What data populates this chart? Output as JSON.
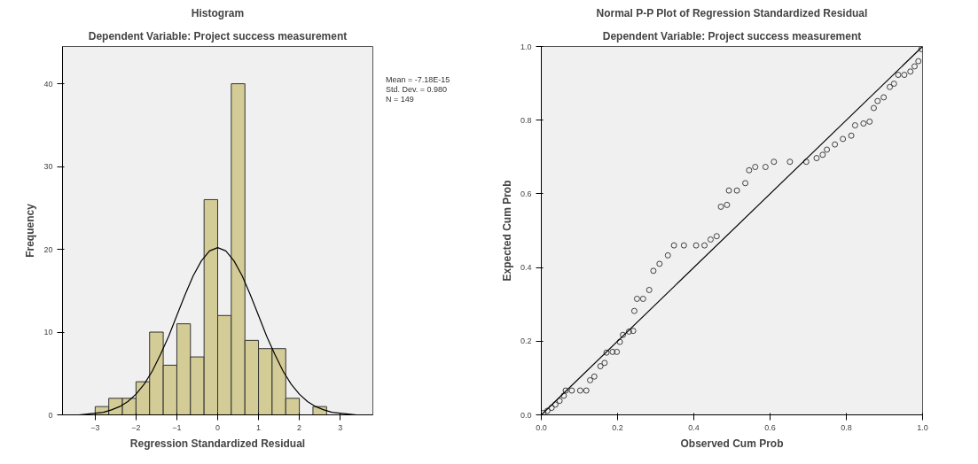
{
  "chart_data": [
    {
      "type": "histogram",
      "title": "Histogram",
      "subtitle": "Dependent Variable: Project success measurement",
      "xlabel": "Regression Standardized Residual",
      "ylabel": "Frequency",
      "bins": [
        -3,
        -2.667,
        -2.333,
        -2,
        -1.667,
        -1.333,
        -1,
        -0.667,
        -0.333,
        0,
        0.333,
        0.667,
        1,
        1.333,
        1.667,
        2,
        2.333,
        2.667
      ],
      "values": [
        1,
        2,
        2,
        4,
        10,
        6,
        11,
        7,
        26,
        12,
        40,
        9,
        8,
        8,
        2,
        0,
        1
      ],
      "color": "#d4cc96",
      "series": [
        {
          "type": "line",
          "color": "#000000",
          "x": [
            -3.8,
            -3.6,
            -3.4,
            -3.2,
            -3.0,
            -2.8,
            -2.6,
            -2.4,
            -2.2,
            -2.0,
            -1.8,
            -1.6,
            -1.4,
            -1.2,
            -1.0,
            -0.8,
            -0.6,
            -0.4,
            -0.2,
            0,
            0.2,
            0.4,
            0.6,
            0.8,
            1.0,
            1.2,
            1.4,
            1.6,
            1.8,
            2.0,
            2.2,
            2.4,
            2.6,
            2.8,
            3.0,
            3.2,
            3.4,
            3.6,
            3.8
          ],
          "values": [
            0,
            0,
            0,
            0.1,
            0.2,
            0.3,
            0.6,
            1,
            1.6,
            2.5,
            3.7,
            5.3,
            7.3,
            9.5,
            12,
            14.5,
            16.8,
            18.6,
            19.8,
            20.2,
            19.8,
            18.6,
            16.8,
            14.5,
            12,
            9.5,
            7.3,
            5.3,
            3.7,
            2.5,
            1.6,
            1,
            0.6,
            0.3,
            0.2,
            0.1,
            0,
            0,
            0
          ]
        }
      ],
      "xlim": [
        -3.8,
        3.8
      ],
      "ylim": [
        0,
        44.5
      ],
      "xticks": [
        -3,
        -2,
        -1,
        0,
        1,
        2,
        3
      ],
      "yticks": [
        0,
        10,
        20,
        30,
        40
      ],
      "annotations": [
        "Mean = -7.18E-15",
        "Std. Dev. = 0.980",
        "N = 149"
      ]
    },
    {
      "type": "scatter",
      "title": "Normal P-P Plot of Regression Standardized Residual",
      "subtitle": "Dependent Variable: Project success measurement",
      "xlabel": "Observed Cum Prob",
      "ylabel": "Expected Cum Prob",
      "series": [
        {
          "color": "#404040",
          "marker": "circle",
          "x": [
            0.005,
            0.016,
            0.027,
            0.037,
            0.048,
            0.059,
            0.064,
            0.08,
            0.102,
            0.118,
            0.128,
            0.139,
            0.155,
            0.166,
            0.171,
            0.187,
            0.198,
            0.206,
            0.214,
            0.23,
            0.241,
            0.244,
            0.251,
            0.267,
            0.283,
            0.294,
            0.31,
            0.332,
            0.348,
            0.374,
            0.406,
            0.428,
            0.444,
            0.46,
            0.471,
            0.487,
            0.492,
            0.513,
            0.535,
            0.545,
            0.561,
            0.588,
            0.61,
            0.652,
            0.695,
            0.722,
            0.738,
            0.749,
            0.77,
            0.791,
            0.813,
            0.823,
            0.845,
            0.861,
            0.872,
            0.882,
            0.898,
            0.914,
            0.925,
            0.936,
            0.952,
            0.968,
            0.979,
            0.989,
            0.997
          ],
          "values": [
            0.005,
            0.011,
            0.019,
            0.028,
            0.038,
            0.052,
            0.066,
            0.066,
            0.066,
            0.066,
            0.094,
            0.104,
            0.132,
            0.141,
            0.169,
            0.171,
            0.171,
            0.198,
            0.217,
            0.226,
            0.228,
            0.282,
            0.315,
            0.315,
            0.339,
            0.391,
            0.41,
            0.433,
            0.46,
            0.46,
            0.46,
            0.46,
            0.476,
            0.485,
            0.565,
            0.57,
            0.609,
            0.609,
            0.629,
            0.664,
            0.673,
            0.673,
            0.687,
            0.687,
            0.687,
            0.697,
            0.706,
            0.72,
            0.734,
            0.749,
            0.758,
            0.786,
            0.791,
            0.796,
            0.833,
            0.852,
            0.862,
            0.89,
            0.899,
            0.923,
            0.923,
            0.932,
            0.946,
            0.96,
            0.993
          ]
        },
        {
          "type": "line",
          "color": "#000000",
          "x": [
            0,
            1
          ],
          "values": [
            0,
            1
          ]
        }
      ],
      "xlim": [
        0,
        1
      ],
      "ylim": [
        0,
        1
      ],
      "xticks": [
        {
          "value": 0,
          "label": "0.0"
        },
        {
          "value": 0.2,
          "label": "0.2"
        },
        {
          "value": 0.4,
          "label": "0.4"
        },
        {
          "value": 0.6,
          "label": "0.6"
        },
        {
          "value": 0.8,
          "label": "0.8"
        },
        {
          "value": 1,
          "label": "1.0"
        }
      ],
      "yticks": [
        {
          "value": 0,
          "label": "0.0"
        },
        {
          "value": 0.2,
          "label": "0.2"
        },
        {
          "value": 0.4,
          "label": "0.4"
        },
        {
          "value": 0.6,
          "label": "0.6"
        },
        {
          "value": 0.8,
          "label": "0.8"
        },
        {
          "value": 1,
          "label": "1.0"
        }
      ]
    }
  ]
}
